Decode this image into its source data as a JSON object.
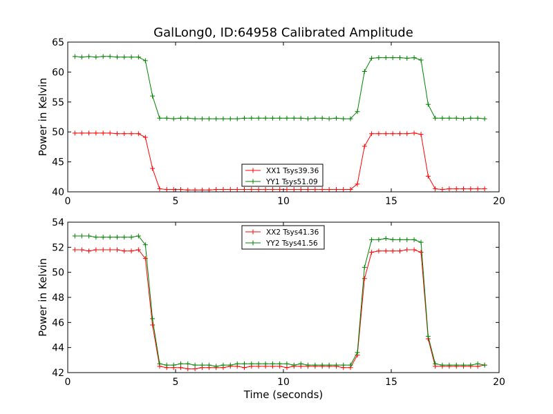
{
  "figure": {
    "title": "GalLong0, ID:64958 Calibrated Amplitude"
  },
  "chart_data": [
    {
      "type": "line",
      "title": "GalLong0, ID:64958 Calibrated Amplitude",
      "xlabel": "",
      "ylabel": "Power in Kelvin",
      "xlim": [
        0,
        20
      ],
      "ylim": [
        40,
        65
      ],
      "xticks": [
        "0",
        "5",
        "10",
        "15",
        "20"
      ],
      "yticks": [
        "40",
        "45",
        "50",
        "55",
        "60",
        "65"
      ],
      "xtick_values": [
        0,
        5,
        10,
        15,
        20
      ],
      "ytick_values": [
        40,
        45,
        50,
        55,
        60,
        65
      ],
      "grid": false,
      "legend_position": "lower-center",
      "series": [
        {
          "name": "XX1 Tsys39.36",
          "color": "#ff0000",
          "marker": "plus",
          "x": [
            0.33,
            0.65,
            0.98,
            1.31,
            1.64,
            1.96,
            2.29,
            2.62,
            2.95,
            3.28,
            3.6,
            3.93,
            4.26,
            4.59,
            4.91,
            5.24,
            5.57,
            5.9,
            6.23,
            6.55,
            6.88,
            7.21,
            7.54,
            7.86,
            8.19,
            8.52,
            8.85,
            9.17,
            9.5,
            9.83,
            10.16,
            10.49,
            10.81,
            11.14,
            11.47,
            11.8,
            12.12,
            12.45,
            12.78,
            13.11,
            13.43,
            13.76,
            14.09,
            14.42,
            14.75,
            15.07,
            15.4,
            15.73,
            16.06,
            16.38,
            16.71,
            17.04,
            17.37,
            17.69,
            18.02,
            18.35,
            18.68,
            19.01,
            19.33
          ],
          "y": [
            49.8,
            49.8,
            49.8,
            49.8,
            49.8,
            49.8,
            49.7,
            49.7,
            49.7,
            49.7,
            49.1,
            43.9,
            40.5,
            40.4,
            40.4,
            40.4,
            40.3,
            40.3,
            40.3,
            40.3,
            40.4,
            40.4,
            40.4,
            40.4,
            40.4,
            40.4,
            40.4,
            40.4,
            40.4,
            40.4,
            40.4,
            40.4,
            40.4,
            40.4,
            40.4,
            40.4,
            40.4,
            40.4,
            40.4,
            40.4,
            41.3,
            47.6,
            49.7,
            49.7,
            49.7,
            49.7,
            49.7,
            49.7,
            49.8,
            49.6,
            42.6,
            40.5,
            40.4,
            40.5,
            40.5,
            40.5,
            40.5,
            40.5,
            40.5
          ]
        },
        {
          "name": "YY1 Tsys51.09",
          "color": "#008000",
          "marker": "plus",
          "x": [
            0.33,
            0.65,
            0.98,
            1.31,
            1.64,
            1.96,
            2.29,
            2.62,
            2.95,
            3.28,
            3.6,
            3.93,
            4.26,
            4.59,
            4.91,
            5.24,
            5.57,
            5.9,
            6.23,
            6.55,
            6.88,
            7.21,
            7.54,
            7.86,
            8.19,
            8.52,
            8.85,
            9.17,
            9.5,
            9.83,
            10.16,
            10.49,
            10.81,
            11.14,
            11.47,
            11.8,
            12.12,
            12.45,
            12.78,
            13.11,
            13.43,
            13.76,
            14.09,
            14.42,
            14.75,
            15.07,
            15.4,
            15.73,
            16.06,
            16.38,
            16.71,
            17.04,
            17.37,
            17.69,
            18.02,
            18.35,
            18.68,
            19.01,
            19.33
          ],
          "y": [
            62.6,
            62.5,
            62.6,
            62.5,
            62.6,
            62.6,
            62.5,
            62.5,
            62.5,
            62.5,
            61.9,
            56.0,
            52.3,
            52.3,
            52.2,
            52.3,
            52.3,
            52.2,
            52.2,
            52.2,
            52.2,
            52.2,
            52.2,
            52.2,
            52.3,
            52.3,
            52.3,
            52.3,
            52.3,
            52.3,
            52.3,
            52.3,
            52.3,
            52.2,
            52.3,
            52.3,
            52.2,
            52.3,
            52.2,
            52.2,
            53.4,
            60.1,
            62.3,
            62.4,
            62.4,
            62.4,
            62.4,
            62.3,
            62.4,
            62.0,
            54.6,
            52.3,
            52.3,
            52.3,
            52.3,
            52.2,
            52.3,
            52.3,
            52.2
          ]
        }
      ]
    },
    {
      "type": "line",
      "title": "",
      "xlabel": "Time (seconds)",
      "ylabel": "Power in Kelvin",
      "xlim": [
        0,
        20
      ],
      "ylim": [
        42,
        54
      ],
      "xticks": [
        "0",
        "5",
        "10",
        "15",
        "20"
      ],
      "yticks": [
        "42",
        "44",
        "46",
        "48",
        "50",
        "52",
        "54"
      ],
      "xtick_values": [
        0,
        5,
        10,
        15,
        20
      ],
      "ytick_values": [
        42,
        44,
        46,
        48,
        50,
        52,
        54
      ],
      "grid": false,
      "legend_position": "upper-center",
      "series": [
        {
          "name": "XX2 Tsys41.36",
          "color": "#ff0000",
          "marker": "plus",
          "x": [
            0.33,
            0.65,
            0.98,
            1.31,
            1.64,
            1.96,
            2.29,
            2.62,
            2.95,
            3.28,
            3.6,
            3.93,
            4.26,
            4.59,
            4.91,
            5.24,
            5.57,
            5.9,
            6.23,
            6.55,
            6.88,
            7.21,
            7.54,
            7.86,
            8.19,
            8.52,
            8.85,
            9.17,
            9.5,
            9.83,
            10.16,
            10.49,
            10.81,
            11.14,
            11.47,
            11.8,
            12.12,
            12.45,
            12.78,
            13.11,
            13.43,
            13.76,
            14.09,
            14.42,
            14.75,
            15.07,
            15.4,
            15.73,
            16.06,
            16.38,
            16.71,
            17.04,
            17.37,
            17.69,
            18.02,
            18.35,
            18.68,
            19.01,
            19.33
          ],
          "y": [
            51.8,
            51.8,
            51.7,
            51.8,
            51.8,
            51.8,
            51.8,
            51.7,
            51.7,
            51.8,
            51.1,
            45.8,
            42.5,
            42.4,
            42.4,
            42.4,
            42.3,
            42.3,
            42.4,
            42.4,
            42.4,
            42.4,
            42.5,
            42.5,
            42.4,
            42.5,
            42.5,
            42.5,
            42.5,
            42.5,
            42.4,
            42.5,
            42.5,
            42.5,
            42.5,
            42.5,
            42.5,
            42.5,
            42.4,
            42.4,
            43.4,
            49.5,
            51.6,
            51.7,
            51.7,
            51.7,
            51.7,
            51.8,
            51.8,
            51.6,
            44.7,
            42.5,
            42.5,
            42.5,
            42.5,
            42.5,
            42.5,
            42.5,
            42.6
          ]
        },
        {
          "name": "YY2 Tsys41.56",
          "color": "#008000",
          "marker": "plus",
          "x": [
            0.33,
            0.65,
            0.98,
            1.31,
            1.64,
            1.96,
            2.29,
            2.62,
            2.95,
            3.28,
            3.6,
            3.93,
            4.26,
            4.59,
            4.91,
            5.24,
            5.57,
            5.9,
            6.23,
            6.55,
            6.88,
            7.21,
            7.54,
            7.86,
            8.19,
            8.52,
            8.85,
            9.17,
            9.5,
            9.83,
            10.16,
            10.49,
            10.81,
            11.14,
            11.47,
            11.8,
            12.12,
            12.45,
            12.78,
            13.11,
            13.43,
            13.76,
            14.09,
            14.42,
            14.75,
            15.07,
            15.4,
            15.73,
            16.06,
            16.38,
            16.71,
            17.04,
            17.37,
            17.69,
            18.02,
            18.35,
            18.68,
            19.01,
            19.33
          ],
          "y": [
            52.9,
            52.9,
            52.9,
            52.8,
            52.8,
            52.8,
            52.8,
            52.8,
            52.8,
            52.9,
            52.2,
            46.3,
            42.7,
            42.6,
            42.6,
            42.7,
            42.7,
            42.6,
            42.6,
            42.6,
            42.5,
            42.6,
            42.6,
            42.7,
            42.7,
            42.7,
            42.7,
            42.7,
            42.7,
            42.7,
            42.7,
            42.6,
            42.7,
            42.6,
            42.6,
            42.6,
            42.6,
            42.6,
            42.6,
            42.6,
            43.6,
            50.4,
            52.6,
            52.6,
            52.7,
            52.6,
            52.6,
            52.6,
            52.6,
            52.4,
            44.9,
            42.7,
            42.6,
            42.6,
            42.6,
            42.6,
            42.6,
            42.7,
            42.6
          ]
        }
      ]
    }
  ]
}
